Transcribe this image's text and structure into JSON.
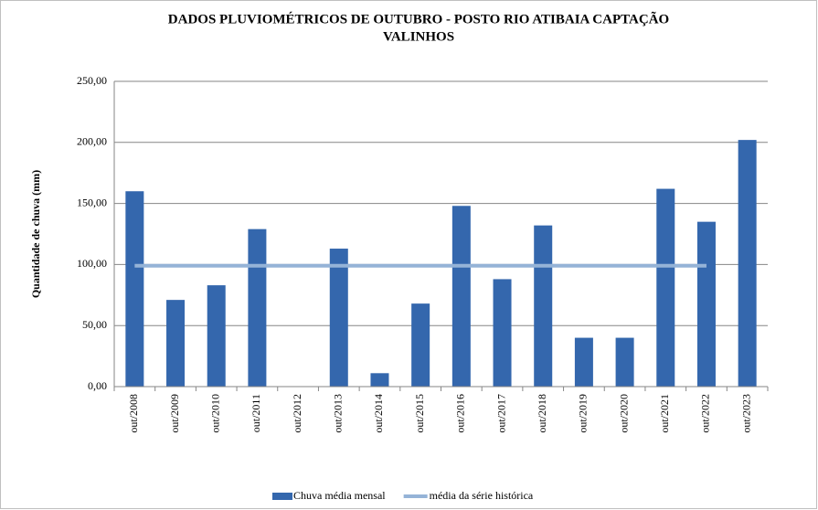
{
  "chart_data": {
    "type": "bar",
    "title": [
      "DADOS PLUVIOMÉTRICOS DE OUTUBRO - POSTO RIO ATIBAIA CAPTAÇÃO",
      "VALINHOS"
    ],
    "y_label": "Quantidade de chuva (mm)",
    "categories": [
      "out/2008",
      "out/2009",
      "out/2010",
      "out/2011",
      "out/2012",
      "out/2013",
      "out/2014",
      "out/2015",
      "out/2016",
      "out/2017",
      "out/2018",
      "out/2019",
      "out/2020",
      "out/2021",
      "out/2022",
      "out/2023"
    ],
    "series": [
      {
        "name": "Chuva média mensal",
        "type": "bar",
        "color": "#3467ad",
        "values": [
          160,
          71,
          83,
          129,
          0,
          113,
          11,
          68,
          148,
          88,
          132,
          40,
          40,
          162,
          135,
          202
        ]
      },
      {
        "name": "média da série histórica",
        "type": "line",
        "color": "#95b3d7",
        "values": [
          99,
          99,
          99,
          99,
          99,
          99,
          99,
          99,
          99,
          99,
          99,
          99,
          99,
          99,
          99,
          null
        ]
      }
    ],
    "ylim": [
      0,
      250
    ],
    "yticks": [
      {
        "value": 0,
        "label": "0,00"
      },
      {
        "value": 50,
        "label": "50,00"
      },
      {
        "value": 100,
        "label": "100,00"
      },
      {
        "value": 150,
        "label": "150,00"
      },
      {
        "value": 200,
        "label": "200,00"
      },
      {
        "value": 250,
        "label": "250,00"
      }
    ],
    "grid": true,
    "legend": "bottom"
  }
}
